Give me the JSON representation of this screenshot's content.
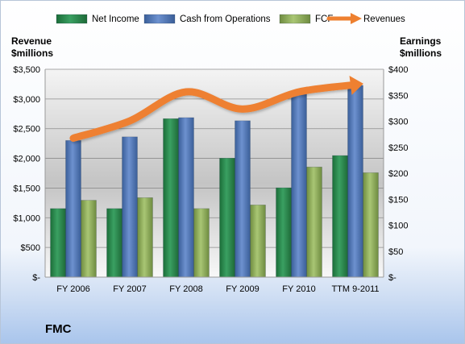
{
  "chart_data": {
    "type": "bar",
    "categories": [
      "FY 2006",
      "FY 2007",
      "FY 2008",
      "FY 2009",
      "FY 2010",
      "TTM 9-2011"
    ],
    "left_axis": {
      "label_line1": "Revenue",
      "label_line2": "$millions",
      "ylim": [
        0,
        3500
      ],
      "ticks": [
        0,
        500,
        1000,
        1500,
        2000,
        2500,
        3000,
        3500
      ],
      "tick_labels": [
        "$-",
        "$500",
        "$1,000",
        "$1,500",
        "$2,000",
        "$2,500",
        "$3,000",
        "$3,500"
      ]
    },
    "right_axis": {
      "label_line1": "Earnings",
      "label_line2": "$millions",
      "ylim": [
        0,
        400
      ],
      "ticks": [
        0,
        50,
        100,
        150,
        200,
        250,
        300,
        350,
        400
      ],
      "tick_labels": [
        "$-",
        "$50",
        "$100",
        "$150",
        "$200",
        "$250",
        "$300",
        "$350",
        "$400"
      ]
    },
    "series": [
      {
        "name": "Net Income",
        "axis": "right",
        "kind": "bar",
        "color": "#2e8b4f",
        "values": [
          132,
          132,
          305,
          229,
          172,
          234
        ]
      },
      {
        "name": "Cash from Operations",
        "axis": "right",
        "kind": "bar",
        "color": "#4f77b8",
        "values": [
          263,
          270,
          307,
          301,
          355,
          369
        ]
      },
      {
        "name": "FCF",
        "axis": "right",
        "kind": "bar",
        "color": "#8fae5a",
        "values": [
          148,
          153,
          132,
          139,
          212,
          201
        ]
      },
      {
        "name": "Revenues",
        "axis": "left",
        "kind": "line",
        "color": "#ee8030",
        "values": [
          2340,
          2630,
          3120,
          2830,
          3120,
          3240
        ]
      }
    ],
    "legend_position": "top",
    "company": "FMC"
  }
}
